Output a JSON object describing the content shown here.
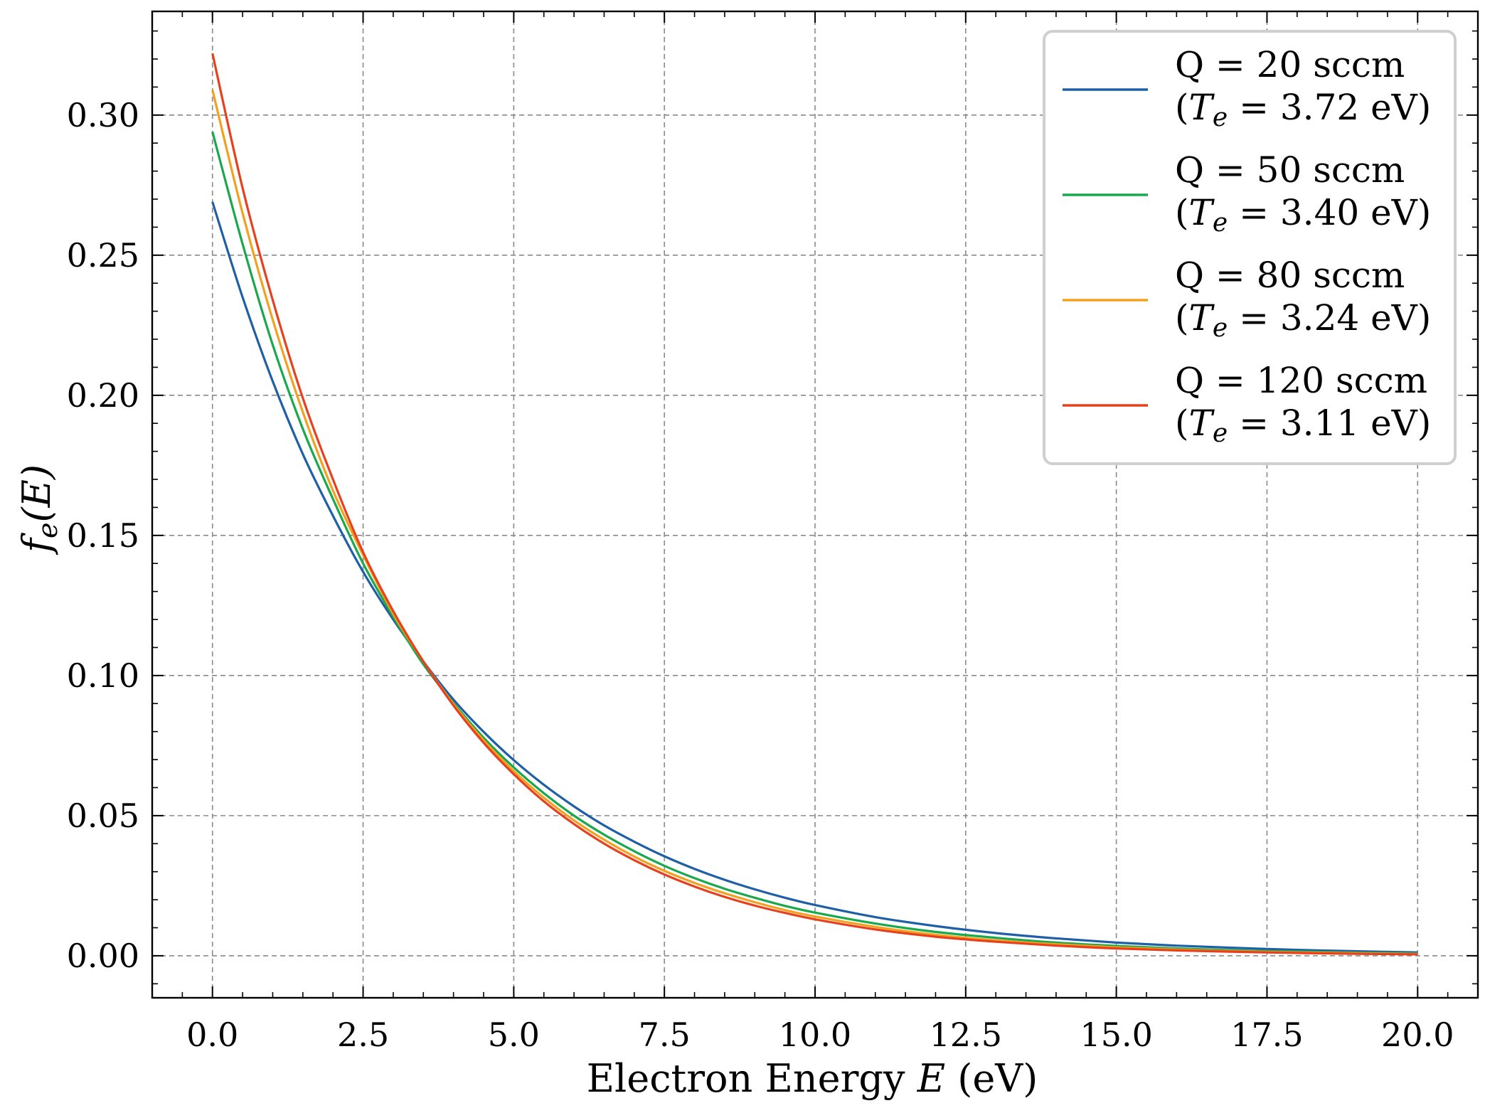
{
  "chart_data": {
    "type": "line",
    "xlabel": {
      "prefix": "Electron Energy ",
      "var": "E",
      "suffix": " (eV)"
    },
    "ylabel": {
      "f": "f",
      "sub": "e",
      "arg": "(E)"
    },
    "xlim": [
      -1,
      21
    ],
    "ylim": [
      -0.015,
      0.337
    ],
    "xticks": [
      0.0,
      2.5,
      5.0,
      7.5,
      10.0,
      12.5,
      15.0,
      17.5,
      20.0
    ],
    "xtick_labels": [
      "0.0",
      "2.5",
      "5.0",
      "7.5",
      "10.0",
      "12.5",
      "15.0",
      "17.5",
      "20.0"
    ],
    "yticks": [
      0.0,
      0.05,
      0.1,
      0.15,
      0.2,
      0.25,
      0.3
    ],
    "ytick_labels": [
      "0.00",
      "0.05",
      "0.10",
      "0.15",
      "0.20",
      "0.25",
      "0.30"
    ],
    "grid": true,
    "legend_position": "top-right",
    "x": [
      0.0,
      0.5,
      1.0,
      1.5,
      2.0,
      2.5,
      3.0,
      3.5,
      4.0,
      4.5,
      5.0,
      5.5,
      6.0,
      6.5,
      7.0,
      7.5,
      8.0,
      8.5,
      9.0,
      9.5,
      10.0,
      11.0,
      12.0,
      13.0,
      14.0,
      15.0,
      16.0,
      17.0,
      18.0,
      19.0,
      20.0
    ],
    "series": [
      {
        "name": "Q = 20 sccm",
        "te_label": " = 3.72 eV)",
        "color": "#1f5fa6",
        "values": [
          0.269,
          0.235,
          0.205,
          0.179,
          0.157,
          0.137,
          0.12,
          0.105,
          0.0914,
          0.0799,
          0.0698,
          0.061,
          0.0533,
          0.0465,
          0.0407,
          0.0355,
          0.031,
          0.0271,
          0.0237,
          0.0207,
          0.0181,
          0.0138,
          0.0106,
          0.0081,
          0.0062,
          0.0047,
          0.0036,
          0.0028,
          0.0021,
          0.0016,
          0.0012
        ]
      },
      {
        "name": "Q = 50 sccm",
        "te_label": " = 3.40 eV)",
        "color": "#19a84c",
        "values": [
          0.294,
          0.254,
          0.218,
          0.188,
          0.163,
          0.14,
          0.121,
          0.104,
          0.0902,
          0.0778,
          0.0672,
          0.058,
          0.05,
          0.0432,
          0.0373,
          0.0321,
          0.0277,
          0.0239,
          0.0207,
          0.0178,
          0.0154,
          0.0115,
          0.0085,
          0.0064,
          0.0047,
          0.0035,
          0.0026,
          0.0019,
          0.0015,
          0.0011,
          0.0008
        ]
      },
      {
        "name": "Q = 80 sccm",
        "te_label": " = 3.24 eV)",
        "color": "#f2a11f",
        "values": [
          0.309,
          0.265,
          0.227,
          0.194,
          0.166,
          0.143,
          0.122,
          0.105,
          0.0898,
          0.0769,
          0.0659,
          0.0564,
          0.0483,
          0.0414,
          0.0354,
          0.0303,
          0.026,
          0.0223,
          0.0191,
          0.0163,
          0.014,
          0.0103,
          0.0075,
          0.0055,
          0.0041,
          0.003,
          0.0022,
          0.0016,
          0.0012,
          0.0009,
          0.0006
        ]
      },
      {
        "name": "Q = 120 sccm",
        "te_label": " = 3.11 eV)",
        "color": "#e8401c",
        "values": [
          0.322,
          0.274,
          0.234,
          0.199,
          0.17,
          0.144,
          0.123,
          0.105,
          0.0893,
          0.076,
          0.0648,
          0.0551,
          0.047,
          0.04,
          0.0341,
          0.029,
          0.0247,
          0.021,
          0.0179,
          0.0153,
          0.013,
          0.0094,
          0.0068,
          0.005,
          0.0036,
          0.0026,
          0.0019,
          0.0014,
          0.001,
          0.0007,
          0.0005
        ]
      }
    ]
  }
}
